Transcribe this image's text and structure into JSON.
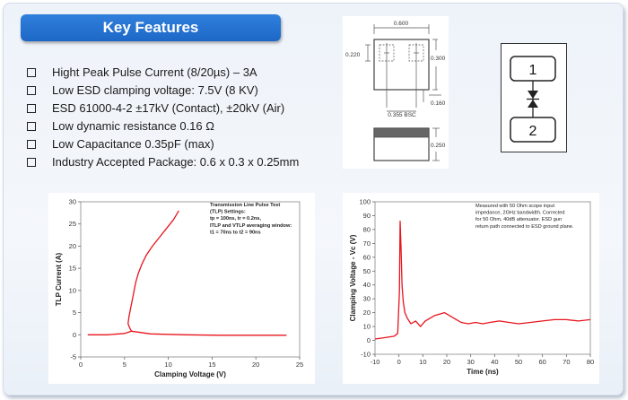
{
  "banner": {
    "title": "Key Features"
  },
  "features": [
    "Hight Peak Pulse Current (8/20µs) – 3A",
    "Low ESD clamping voltage: 7.5V (8 KV)",
    "ESD 61000-4-2 ±17kV (Contact), ±20kV (Air)",
    "Low dynamic resistance 0.16 Ω",
    "Low Capacitance 0.35pF (max)",
    "Industry Accepted Package: 0.6 x 0.3 x 0.25mm"
  ],
  "package": {
    "dim_width": "0.600",
    "dim_left": "0.220",
    "dim_right": "0.300",
    "dim_pad": "0.160",
    "dim_pitch": "0.355 BSC",
    "dim_height": "0.250"
  },
  "symbol": {
    "pin1": "1",
    "pin2": "2"
  },
  "chart_data": [
    {
      "type": "line",
      "title": "",
      "xlabel": "Clamping Voltage (V)",
      "ylabel": "TLP Current (A)",
      "xlim": [
        0,
        25
      ],
      "ylim": [
        -5,
        30
      ],
      "xticks": [
        0,
        5,
        10,
        15,
        20,
        25
      ],
      "yticks": [
        -5,
        0,
        5,
        10,
        15,
        20,
        25,
        30
      ],
      "annotation": [
        "Transmission Line Pulse Test",
        "(TLP) Settings:",
        "tp = 100ns, tr = 0.2ns,",
        "ITLP and VTLP averaging window:",
        "t1 = 70ns to t2 = 90ns"
      ],
      "series": [
        {
          "color": "#e8141c",
          "x": [
            0.8,
            3,
            5,
            5.8,
            5.6,
            5.4,
            5.5,
            5.7,
            5.9,
            6.1,
            6.3,
            6.6,
            7.0,
            7.5,
            8.2,
            9.0,
            9.8,
            10.6,
            11.2
          ],
          "y": [
            0,
            0,
            0.3,
            0.8,
            1.5,
            2.5,
            4,
            6,
            8,
            10,
            12,
            14,
            16,
            18,
            20,
            22,
            24,
            26,
            28
          ]
        },
        {
          "color": "#e8141c",
          "x": [
            5.8,
            8,
            12,
            16,
            20,
            23.5
          ],
          "y": [
            0.8,
            0.2,
            0.0,
            -0.1,
            -0.1,
            -0.1
          ]
        }
      ]
    },
    {
      "type": "line",
      "title": "",
      "xlabel": "Time (ns)",
      "ylabel": "Clamping Voltage - Vc (V)",
      "xlim": [
        -10,
        80
      ],
      "ylim": [
        -10,
        100
      ],
      "xticks": [
        -10,
        0,
        10,
        20,
        30,
        40,
        50,
        60,
        70,
        80
      ],
      "yticks": [
        -10,
        0,
        10,
        20,
        30,
        40,
        50,
        60,
        70,
        80,
        90,
        100
      ],
      "annotation": [
        "Measured with 50 Ohm scope input",
        "impedance, 2GHz bandwidth. Corrected",
        "for 50 Ohm, 40dB attenuator. ESD gun",
        "return path connected to ESD ground plane."
      ],
      "series": [
        {
          "color": "#e8141c",
          "x": [
            -10,
            -6,
            -2,
            -0.5,
            0.2,
            0.5,
            0.9,
            1.3,
            1.8,
            2.5,
            3.5,
            5,
            7,
            9,
            11,
            13,
            15,
            17,
            19,
            21,
            23,
            26,
            29,
            32,
            35,
            38,
            42,
            46,
            50,
            55,
            60,
            65,
            70,
            75,
            80
          ],
          "y": [
            1,
            2,
            3,
            5,
            35,
            86,
            65,
            40,
            28,
            20,
            16,
            12,
            14,
            10,
            14,
            16,
            18,
            19,
            20,
            18,
            16,
            13,
            12,
            13,
            12,
            13,
            14,
            13,
            12,
            13,
            14,
            15,
            15,
            14,
            15
          ]
        }
      ]
    }
  ]
}
